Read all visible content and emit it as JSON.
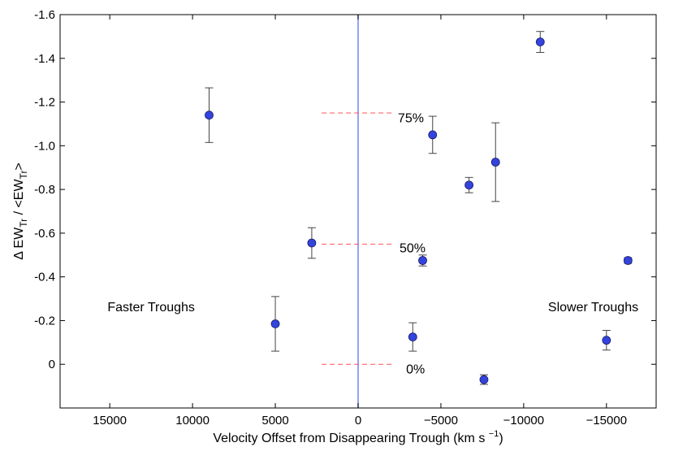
{
  "chart_data": {
    "type": "scatter",
    "title": "",
    "xlabel": "Velocity Offset from Disappearing Trough (km s",
    "xlabel_superscript": "−1",
    "xlabel_close": ")",
    "ylabel": "Δ EW_Tr / <EW_Tr>",
    "xlim": [
      18000,
      -18000
    ],
    "ylim": [
      0.2,
      -1.6
    ],
    "x_ticks": [
      15000,
      10000,
      5000,
      0,
      -5000,
      -10000,
      -15000
    ],
    "x_tick_labels": [
      "15000",
      "10000",
      "5000",
      "0",
      "−5000",
      "−10000",
      "−15000"
    ],
    "y_ticks": [
      -1.6,
      -1.4,
      -1.2,
      -1.0,
      -0.8,
      -0.6,
      -0.4,
      -0.2,
      0
    ],
    "y_tick_labels": [
      "-1.6",
      "-1.4",
      "-1.2",
      "-1.0",
      "-0.8",
      "-0.6",
      "-0.4",
      "-0.2",
      "0"
    ],
    "grid": false,
    "marker_color": "#3344dd",
    "marker_edge": "#1a1a66",
    "errorbar_color": "#444444",
    "zero_line_color": "#7a8cf0",
    "reference_line_color": "#ff5555",
    "points": [
      {
        "x": 9000,
        "y": -1.14,
        "err": 0.125
      },
      {
        "x": 5000,
        "y": -0.185,
        "err": 0.125
      },
      {
        "x": 2800,
        "y": -0.555,
        "err": 0.07
      },
      {
        "x": -3300,
        "y": -0.125,
        "err": 0.065
      },
      {
        "x": -3900,
        "y": -0.475,
        "err": 0.025
      },
      {
        "x": -4500,
        "y": -1.05,
        "err": 0.085
      },
      {
        "x": -6700,
        "y": -0.82,
        "err": 0.035
      },
      {
        "x": -7600,
        "y": 0.07,
        "err": 0.022
      },
      {
        "x": -8300,
        "y": -0.925,
        "err": 0.18
      },
      {
        "x": -11000,
        "y": -1.475,
        "err": 0.048
      },
      {
        "x": -15000,
        "y": -0.11,
        "err": 0.045
      },
      {
        "x": -16300,
        "y": -0.475,
        "err": 0.013
      }
    ],
    "reference_lines": [
      {
        "y": -1.15,
        "x_from": 2200,
        "x_to": -2200,
        "label": "75%",
        "label_x": -2400,
        "label_y": -1.13
      },
      {
        "y": -0.55,
        "x_from": 2200,
        "x_to": -2200,
        "label": "50%",
        "label_x": -2500,
        "label_y": -0.535
      },
      {
        "y": 0,
        "x_from": 2200,
        "x_to": -2200,
        "label": "0%",
        "label_x": -2900,
        "label_y": 0.02
      }
    ],
    "annotations": [
      {
        "text": "Faster Troughs",
        "x": 12500,
        "y": -0.265
      },
      {
        "text": "Slower Troughs",
        "x": -14200,
        "y": -0.265
      }
    ]
  }
}
